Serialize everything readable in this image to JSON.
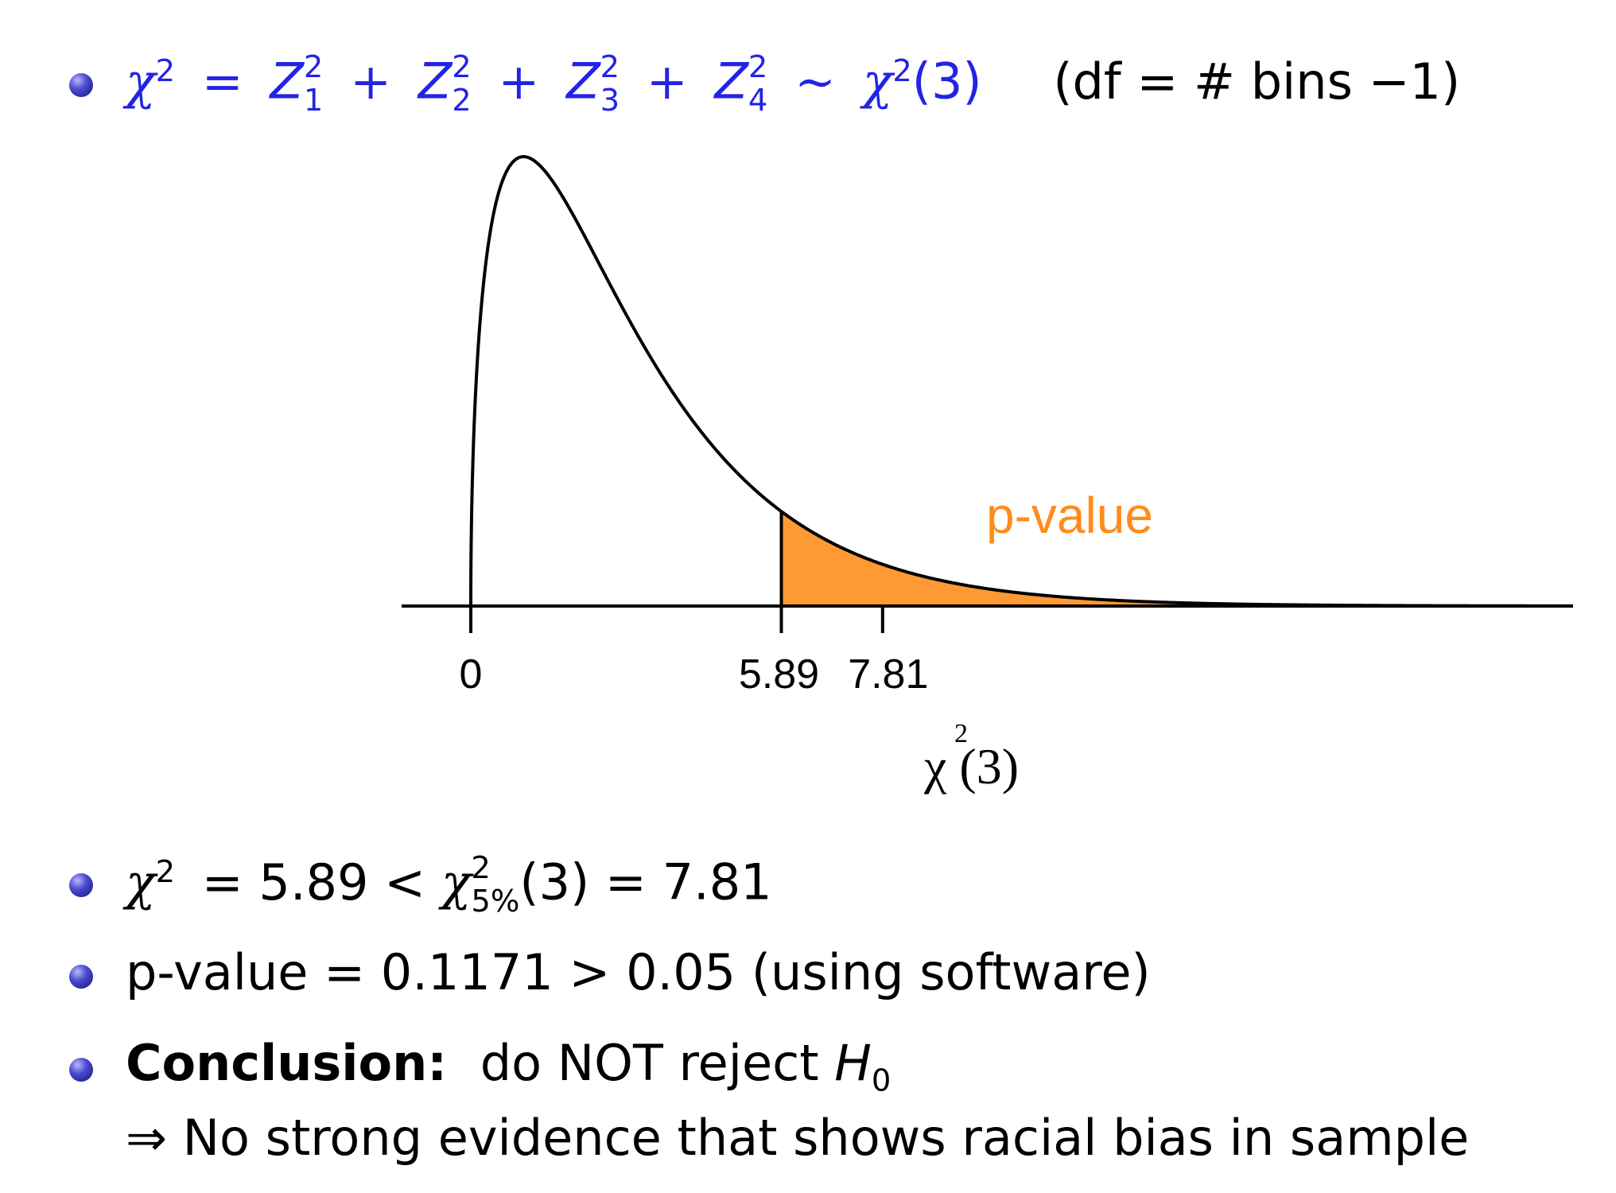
{
  "bullet1": {
    "chi2": "χ",
    "sq": "2",
    "eq": "=",
    "z": "Z",
    "subs": [
      "1",
      "2",
      "3",
      "4"
    ],
    "plus": "+",
    "sim": "∼",
    "df_arg": "(3)",
    "note": "(df = # bins −1)"
  },
  "chart_data": {
    "type": "area",
    "distribution": "chi-squared",
    "df": 3,
    "x_ticks": [
      0,
      5.89,
      7.81
    ],
    "tick_labels": [
      "0",
      "5.89",
      "7.81"
    ],
    "observed": 5.89,
    "critical_5pct": 7.81,
    "shaded_label": "p-value",
    "xlabel_base": "χ",
    "xlabel_sup": "2",
    "xlabel_arg": "(3)",
    "xlim": [
      0,
      17
    ],
    "curve_color": "#000000",
    "shade_color": "#ff9933"
  },
  "bullet2": {
    "lhs": "χ",
    "sq": "2",
    "mid": "= 5.89 <",
    "rhs_base": "χ",
    "rhs_sup": "2",
    "rhs_sub": "5%",
    "rhs_tail": "(3) = 7.81"
  },
  "bullet3": {
    "text": "p-value = 0.1171 > 0.05 (using software)"
  },
  "bullet4": {
    "bold": "Conclusion:",
    "rest": "do NOT reject",
    "h": "H",
    "h_sub": "0",
    "line2": "⇒ No strong evidence that shows racial bias in sample"
  },
  "colors": {
    "accent_blue": "#2323e6",
    "bullet": "#2e2ea0"
  }
}
